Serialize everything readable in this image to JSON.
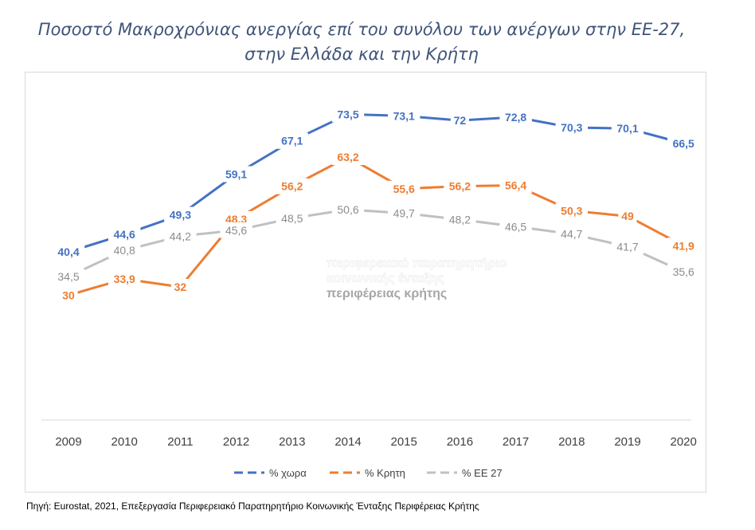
{
  "title": {
    "line1": "Ποσοστό Μακροχρόνιας ανεργίας επί του συνόλου των ανέργων στην ΕΕ-27,",
    "line2": "στην Ελλάδα και την Κρήτη"
  },
  "source": "Πηγή: Eurostat,  2021, Επεξεργασία Περιφερειακό Παρατηρητήριο Κοινωνικής Ένταξης Περιφέρειας Κρήτης",
  "watermark": {
    "line1": "περιφερειακό παρατηρητήριο",
    "line2": "κοινωνικής ένταξης",
    "line3": "περιφέρειας κρήτης"
  },
  "chart_data": {
    "type": "line",
    "title": "Ποσοστό Μακροχρόνιας ανεργίας επί του συνόλου των ανέργων στην ΕΕ-27, στην Ελλάδα και την Κρήτη",
    "xlabel": "",
    "ylabel": "",
    "ylim": [
      0,
      80
    ],
    "grid": false,
    "legend_position": "bottom",
    "x": [
      "2009",
      "2010",
      "2011",
      "2012",
      "2013",
      "2014",
      "2015",
      "2016",
      "2017",
      "2018",
      "2019",
      "2020"
    ],
    "series": [
      {
        "name": "% χωρα",
        "color": "#4472c4",
        "labels": [
          "40,4",
          "44,6",
          "49,3",
          "59,1",
          "67,1",
          "73,5",
          "73,1",
          "72",
          "72,8",
          "70,3",
          "70,1",
          "66,5"
        ],
        "values": [
          40.4,
          44.6,
          49.3,
          59.1,
          67.1,
          73.5,
          73.1,
          72,
          72.8,
          70.3,
          70.1,
          66.5
        ]
      },
      {
        "name": "% Κρητη",
        "color": "#ed7d31",
        "labels": [
          "30",
          "33,9",
          "32",
          "48,3",
          "56,2",
          "63,2",
          "55,6",
          "56,2",
          "56,4",
          "50,3",
          "49",
          "41,9"
        ],
        "values": [
          30,
          33.9,
          32,
          48.3,
          56.2,
          63.2,
          55.6,
          56.2,
          56.4,
          50.3,
          49,
          41.9
        ]
      },
      {
        "name": "% ΕΕ 27",
        "color": "#c0c0c0",
        "labels": [
          "34,5",
          "40,8",
          "44,2",
          "45,6",
          "48,5",
          "50,6",
          "49,7",
          "48,2",
          "46,5",
          "44,7",
          "41,7",
          "35,6"
        ],
        "values": [
          34.5,
          40.8,
          44.2,
          45.6,
          48.5,
          50.6,
          49.7,
          48.2,
          46.5,
          44.7,
          41.7,
          35.6
        ]
      }
    ]
  }
}
